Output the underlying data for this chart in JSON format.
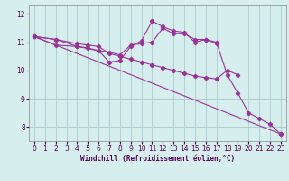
{
  "background_color": "#d6eeee",
  "line_color": "#993399",
  "grid_color": "#aacccc",
  "xlabel": "Windchill (Refroidissement éolien,°C)",
  "xlim": [
    -0.5,
    23.5
  ],
  "ylim": [
    7.5,
    12.3
  ],
  "yticks": [
    8,
    9,
    10,
    11,
    12
  ],
  "xticks": [
    0,
    1,
    2,
    3,
    4,
    5,
    6,
    7,
    8,
    9,
    10,
    11,
    12,
    13,
    14,
    15,
    16,
    17,
    18,
    19,
    20,
    21,
    22,
    23
  ],
  "series": [
    {
      "x": [
        0,
        23
      ],
      "y": [
        11.2,
        7.75
      ]
    },
    {
      "x": [
        0,
        2,
        4,
        6,
        7,
        8,
        9,
        10,
        11,
        12,
        13,
        14,
        15,
        16,
        17,
        18,
        19,
        20,
        21,
        22,
        23
      ],
      "y": [
        11.2,
        10.9,
        10.85,
        10.7,
        10.3,
        10.35,
        10.85,
        11.05,
        11.75,
        11.55,
        11.4,
        11.35,
        11.0,
        11.1,
        11.0,
        9.85,
        9.2,
        8.5,
        8.3,
        8.1,
        7.75
      ]
    },
    {
      "x": [
        0,
        2,
        4,
        5,
        6,
        7,
        8,
        9,
        10,
        11,
        12,
        13,
        14,
        15,
        16,
        17
      ],
      "y": [
        11.2,
        11.1,
        10.85,
        10.8,
        10.7,
        10.65,
        10.55,
        10.9,
        10.95,
        11.0,
        11.5,
        11.3,
        11.3,
        11.1,
        11.1,
        10.95
      ]
    },
    {
      "x": [
        0,
        2,
        4,
        5,
        6,
        7,
        8,
        9,
        10,
        11,
        12,
        13,
        14,
        15,
        16,
        17,
        18,
        19
      ],
      "y": [
        11.2,
        11.1,
        10.95,
        10.9,
        10.85,
        10.6,
        10.5,
        10.4,
        10.3,
        10.2,
        10.1,
        10.0,
        9.9,
        9.8,
        9.75,
        9.7,
        10.0,
        9.85
      ]
    }
  ]
}
